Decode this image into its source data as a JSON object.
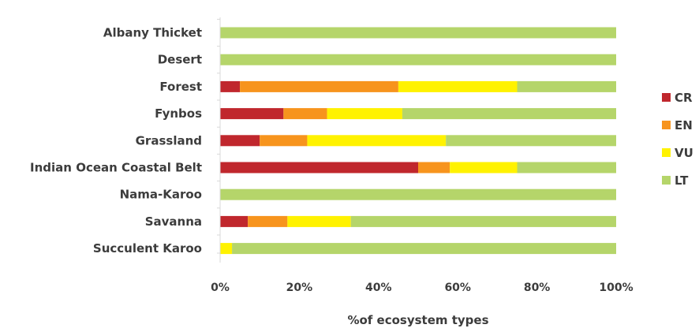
{
  "chart_data": {
    "type": "bar",
    "orientation": "horizontal",
    "stacked": "percent",
    "categories": [
      "Albany Thicket",
      "Desert",
      "Forest",
      "Fynbos",
      "Grassland",
      "Indian Ocean Coastal Belt",
      "Nama-Karoo",
      "Savanna",
      "Succulent Karoo"
    ],
    "series": [
      {
        "name": "CR",
        "color": "#c0272d",
        "values": [
          0,
          0,
          5,
          16,
          10,
          50,
          0,
          7,
          0
        ]
      },
      {
        "name": "EN",
        "color": "#f7941d",
        "values": [
          0,
          0,
          40,
          11,
          12,
          8,
          0,
          10,
          0
        ]
      },
      {
        "name": "VU",
        "color": "#fff200",
        "values": [
          0,
          0,
          30,
          19,
          35,
          17,
          0,
          16,
          3
        ]
      },
      {
        "name": "LT",
        "color": "#b5d56a",
        "values": [
          100,
          100,
          25,
          54,
          43,
          25,
          100,
          67,
          97
        ]
      }
    ],
    "xlim": [
      0,
      100
    ],
    "xticks": [
      "0%",
      "20%",
      "40%",
      "60%",
      "80%",
      "100%"
    ],
    "xlabel": "%of ecosystem types",
    "ylabel": "",
    "title": "",
    "legend": "right",
    "grid": false
  }
}
